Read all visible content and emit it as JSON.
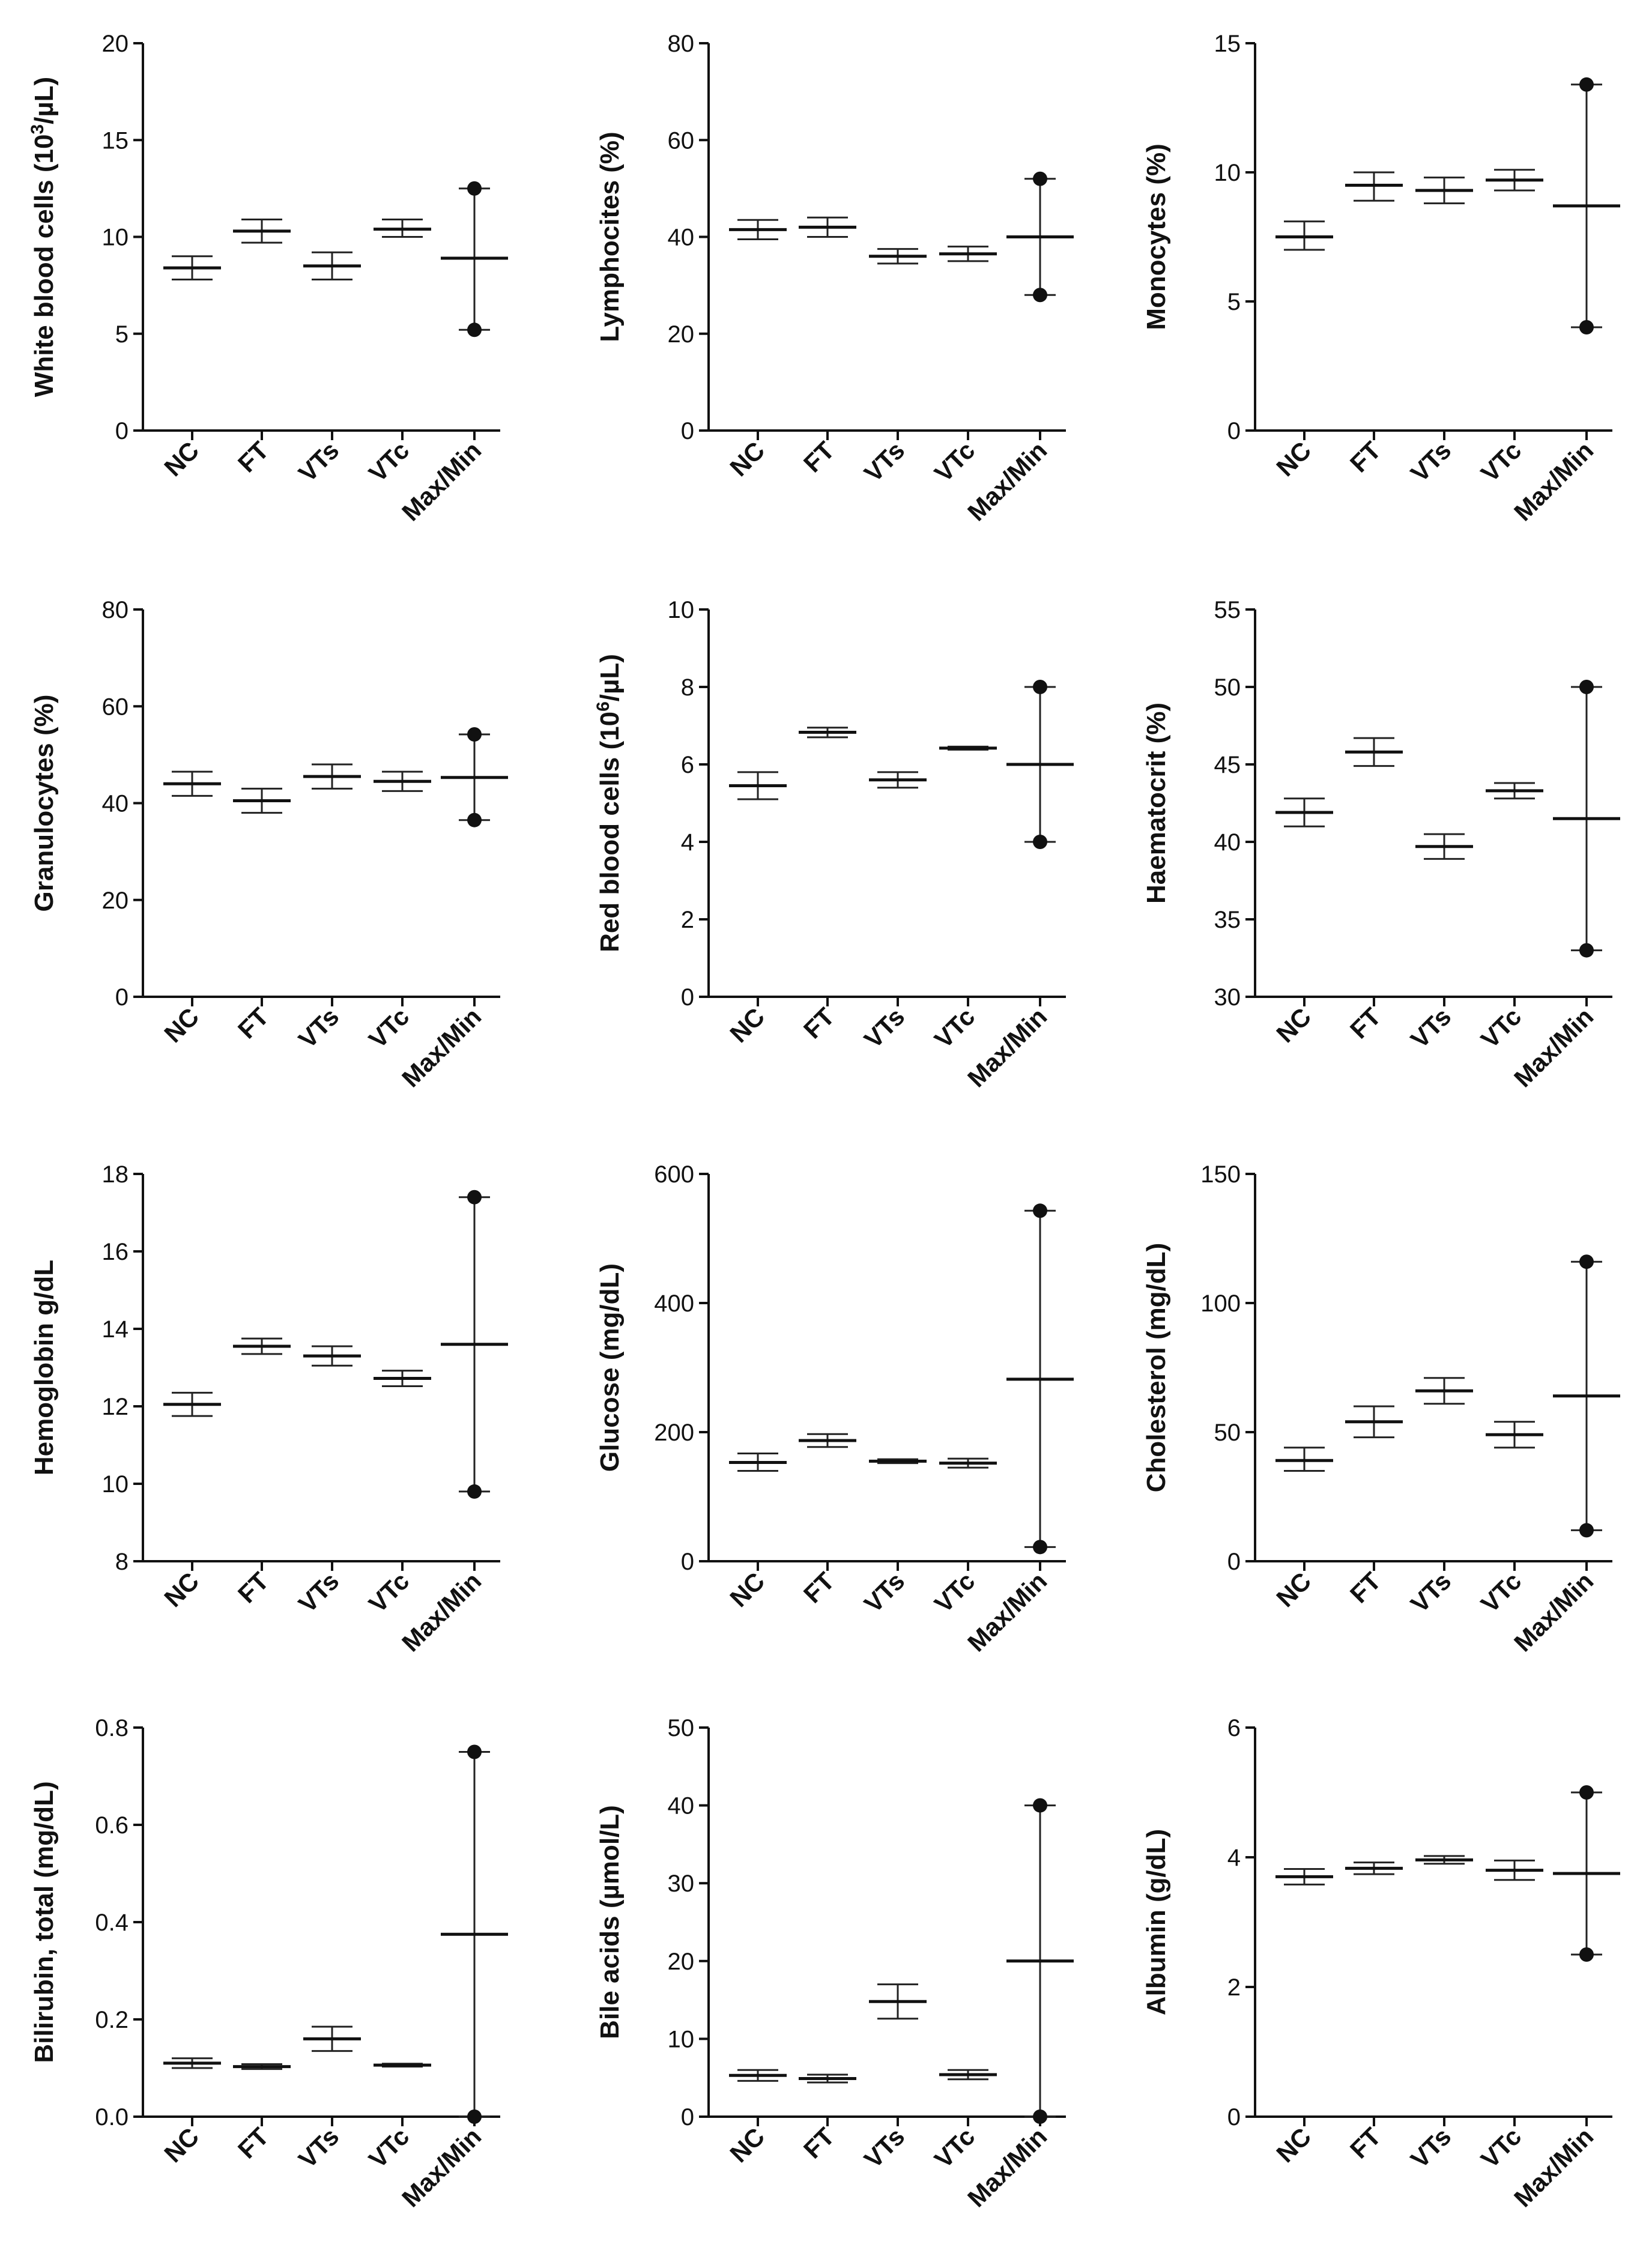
{
  "figure": {
    "categories": [
      "NC",
      "FT",
      "VTs",
      "VTc",
      "Max/Min"
    ]
  },
  "chart_data": [
    {
      "type": "scatter",
      "title": "",
      "ylabel": "White blood cells (10³/µL)",
      "ylabel_parts": [
        "White blood cells (10",
        "3",
        "/µL)"
      ],
      "ylim": [
        0,
        20
      ],
      "yticks": [
        0,
        5,
        10,
        15,
        20
      ],
      "categories": [
        "NC",
        "FT",
        "VTs",
        "VTc",
        "Max/Min"
      ],
      "groups": [
        {
          "name": "NC",
          "mean": 8.4,
          "low": 7.8,
          "high": 9.0
        },
        {
          "name": "FT",
          "mean": 10.3,
          "low": 9.7,
          "high": 10.9
        },
        {
          "name": "VTs",
          "mean": 8.5,
          "low": 7.8,
          "high": 9.2
        },
        {
          "name": "VTc",
          "mean": 10.4,
          "low": 10.0,
          "high": 10.9
        }
      ],
      "maxmin": {
        "max": 12.5,
        "min": 5.2,
        "mid": 8.9
      }
    },
    {
      "type": "scatter",
      "title": "",
      "ylabel": "Lymphocites (%)",
      "ylim": [
        0,
        80
      ],
      "yticks": [
        0,
        20,
        40,
        60,
        80
      ],
      "categories": [
        "NC",
        "FT",
        "VTs",
        "VTc",
        "Max/Min"
      ],
      "groups": [
        {
          "name": "NC",
          "mean": 41.5,
          "low": 39.5,
          "high": 43.5
        },
        {
          "name": "FT",
          "mean": 42.0,
          "low": 40.0,
          "high": 44.0
        },
        {
          "name": "VTs",
          "mean": 36.0,
          "low": 34.5,
          "high": 37.5
        },
        {
          "name": "VTc",
          "mean": 36.5,
          "low": 35.0,
          "high": 38.0
        }
      ],
      "maxmin": {
        "max": 52,
        "min": 28,
        "mid": 40
      }
    },
    {
      "type": "scatter",
      "title": "",
      "ylabel": "Monocytes (%)",
      "ylim": [
        0,
        15
      ],
      "yticks": [
        0,
        5,
        10,
        15
      ],
      "categories": [
        "NC",
        "FT",
        "VTs",
        "VTc",
        "Max/Min"
      ],
      "groups": [
        {
          "name": "NC",
          "mean": 7.5,
          "low": 7.0,
          "high": 8.1
        },
        {
          "name": "FT",
          "mean": 9.5,
          "low": 8.9,
          "high": 10.0
        },
        {
          "name": "VTs",
          "mean": 9.3,
          "low": 8.8,
          "high": 9.8
        },
        {
          "name": "VTc",
          "mean": 9.7,
          "low": 9.3,
          "high": 10.1
        }
      ],
      "maxmin": {
        "max": 13.4,
        "min": 4.0,
        "mid": 8.7
      }
    },
    {
      "type": "scatter",
      "title": "",
      "ylabel": "Granulocytes (%)",
      "ylim": [
        0,
        80
      ],
      "yticks": [
        0,
        20,
        40,
        60,
        80
      ],
      "categories": [
        "NC",
        "FT",
        "VTs",
        "VTc",
        "Max/Min"
      ],
      "groups": [
        {
          "name": "NC",
          "mean": 44.0,
          "low": 41.5,
          "high": 46.5
        },
        {
          "name": "FT",
          "mean": 40.5,
          "low": 38.0,
          "high": 43.0
        },
        {
          "name": "VTs",
          "mean": 45.5,
          "low": 43.0,
          "high": 48.0
        },
        {
          "name": "VTc",
          "mean": 44.5,
          "low": 42.5,
          "high": 46.5
        }
      ],
      "maxmin": {
        "max": 54.2,
        "min": 36.5,
        "mid": 45.3
      }
    },
    {
      "type": "scatter",
      "title": "",
      "ylabel": "Red blood cells (10⁶/µL)",
      "ylabel_parts": [
        "Red blood cells (10",
        "6",
        "/µL)"
      ],
      "ylim": [
        0,
        10
      ],
      "yticks": [
        0,
        2,
        4,
        6,
        8,
        10
      ],
      "categories": [
        "NC",
        "FT",
        "VTs",
        "VTc",
        "Max/Min"
      ],
      "groups": [
        {
          "name": "NC",
          "mean": 5.45,
          "low": 5.1,
          "high": 5.8
        },
        {
          "name": "FT",
          "mean": 6.83,
          "low": 6.7,
          "high": 6.95
        },
        {
          "name": "VTs",
          "mean": 5.6,
          "low": 5.4,
          "high": 5.8
        },
        {
          "name": "VTc",
          "mean": 6.42,
          "low": 6.38,
          "high": 6.46
        }
      ],
      "maxmin": {
        "max": 8.0,
        "min": 4.0,
        "mid": 6.0
      }
    },
    {
      "type": "scatter",
      "title": "",
      "ylabel": "Haematocrit (%)",
      "ylim": [
        30,
        55
      ],
      "yticks": [
        30,
        35,
        40,
        45,
        50,
        55
      ],
      "categories": [
        "NC",
        "FT",
        "VTs",
        "VTc",
        "Max/Min"
      ],
      "groups": [
        {
          "name": "NC",
          "mean": 41.9,
          "low": 41.0,
          "high": 42.8
        },
        {
          "name": "FT",
          "mean": 45.8,
          "low": 44.9,
          "high": 46.7
        },
        {
          "name": "VTs",
          "mean": 39.7,
          "low": 38.9,
          "high": 40.5
        },
        {
          "name": "VTc",
          "mean": 43.3,
          "low": 42.8,
          "high": 43.8
        }
      ],
      "maxmin": {
        "max": 50.0,
        "min": 33.0,
        "mid": 41.5
      }
    },
    {
      "type": "scatter",
      "title": "",
      "ylabel": "Hemoglobin g/dL",
      "ylim": [
        8,
        18
      ],
      "yticks": [
        8,
        10,
        12,
        14,
        16,
        18
      ],
      "categories": [
        "NC",
        "FT",
        "VTs",
        "VTc",
        "Max/Min"
      ],
      "groups": [
        {
          "name": "NC",
          "mean": 12.05,
          "low": 11.75,
          "high": 12.35
        },
        {
          "name": "FT",
          "mean": 13.55,
          "low": 13.35,
          "high": 13.75
        },
        {
          "name": "VTs",
          "mean": 13.3,
          "low": 13.05,
          "high": 13.55
        },
        {
          "name": "VTc",
          "mean": 12.72,
          "low": 12.52,
          "high": 12.92
        }
      ],
      "maxmin": {
        "max": 17.4,
        "min": 9.8,
        "mid": 13.6
      }
    },
    {
      "type": "scatter",
      "title": "",
      "ylabel": "Glucose (mg/dL)",
      "ylim": [
        0,
        600
      ],
      "yticks": [
        0,
        200,
        400,
        600
      ],
      "categories": [
        "NC",
        "FT",
        "VTs",
        "VTc",
        "Max/Min"
      ],
      "groups": [
        {
          "name": "NC",
          "mean": 153,
          "low": 140,
          "high": 167
        },
        {
          "name": "FT",
          "mean": 187,
          "low": 177,
          "high": 197
        },
        {
          "name": "VTs",
          "mean": 155,
          "low": 152,
          "high": 158
        },
        {
          "name": "VTc",
          "mean": 152,
          "low": 145,
          "high": 159
        }
      ],
      "maxmin": {
        "max": 543,
        "min": 22,
        "mid": 282
      }
    },
    {
      "type": "scatter",
      "title": "",
      "ylabel": "Cholesterol (mg/dL)",
      "ylim": [
        0,
        150
      ],
      "yticks": [
        0,
        50,
        100,
        150
      ],
      "categories": [
        "NC",
        "FT",
        "VTs",
        "VTc",
        "Max/Min"
      ],
      "groups": [
        {
          "name": "NC",
          "mean": 39,
          "low": 35,
          "high": 44
        },
        {
          "name": "FT",
          "mean": 54,
          "low": 48,
          "high": 60
        },
        {
          "name": "VTs",
          "mean": 66,
          "low": 61,
          "high": 71
        },
        {
          "name": "VTc",
          "mean": 49,
          "low": 44,
          "high": 54
        }
      ],
      "maxmin": {
        "max": 116,
        "min": 12,
        "mid": 64
      }
    },
    {
      "type": "scatter",
      "title": "",
      "ylabel": "Bilirubin, total (mg/dL)",
      "ylim": [
        0,
        0.8
      ],
      "yticks": [
        0.0,
        0.2,
        0.4,
        0.6,
        0.8
      ],
      "yticklabels": [
        "0.0",
        "0.2",
        "0.4",
        "0.6",
        "0.8"
      ],
      "categories": [
        "NC",
        "FT",
        "VTs",
        "VTc",
        "Max/Min"
      ],
      "groups": [
        {
          "name": "NC",
          "mean": 0.11,
          "low": 0.1,
          "high": 0.12
        },
        {
          "name": "FT",
          "mean": 0.103,
          "low": 0.098,
          "high": 0.108
        },
        {
          "name": "VTs",
          "mean": 0.16,
          "low": 0.135,
          "high": 0.185
        },
        {
          "name": "VTc",
          "mean": 0.106,
          "low": 0.103,
          "high": 0.109
        }
      ],
      "maxmin": {
        "max": 0.75,
        "min": 0.0,
        "mid": 0.375
      }
    },
    {
      "type": "scatter",
      "title": "",
      "ylabel": "Bile acids (µmol/L)",
      "ylim": [
        0,
        50
      ],
      "yticks": [
        0,
        10,
        20,
        30,
        40,
        50
      ],
      "categories": [
        "NC",
        "FT",
        "VTs",
        "VTc",
        "Max/Min"
      ],
      "groups": [
        {
          "name": "NC",
          "mean": 5.3,
          "low": 4.6,
          "high": 6.0
        },
        {
          "name": "FT",
          "mean": 4.9,
          "low": 4.4,
          "high": 5.4
        },
        {
          "name": "VTs",
          "mean": 14.8,
          "low": 12.6,
          "high": 17.0
        },
        {
          "name": "VTc",
          "mean": 5.4,
          "low": 4.8,
          "high": 6.0
        }
      ],
      "maxmin": {
        "max": 40.0,
        "min": 0.0,
        "mid": 20.0
      }
    },
    {
      "type": "scatter",
      "title": "",
      "ylabel": "Albumin (g/dL)",
      "ylim": [
        0,
        6
      ],
      "yticks": [
        0,
        2,
        4,
        6
      ],
      "categories": [
        "NC",
        "FT",
        "VTs",
        "VTc",
        "Max/Min"
      ],
      "groups": [
        {
          "name": "NC",
          "mean": 3.7,
          "low": 3.58,
          "high": 3.82
        },
        {
          "name": "FT",
          "mean": 3.83,
          "low": 3.74,
          "high": 3.92
        },
        {
          "name": "VTs",
          "mean": 3.96,
          "low": 3.9,
          "high": 4.02
        },
        {
          "name": "VTc",
          "mean": 3.8,
          "low": 3.65,
          "high": 3.95
        }
      ],
      "maxmin": {
        "max": 5.0,
        "min": 2.5,
        "mid": 3.75
      }
    }
  ]
}
